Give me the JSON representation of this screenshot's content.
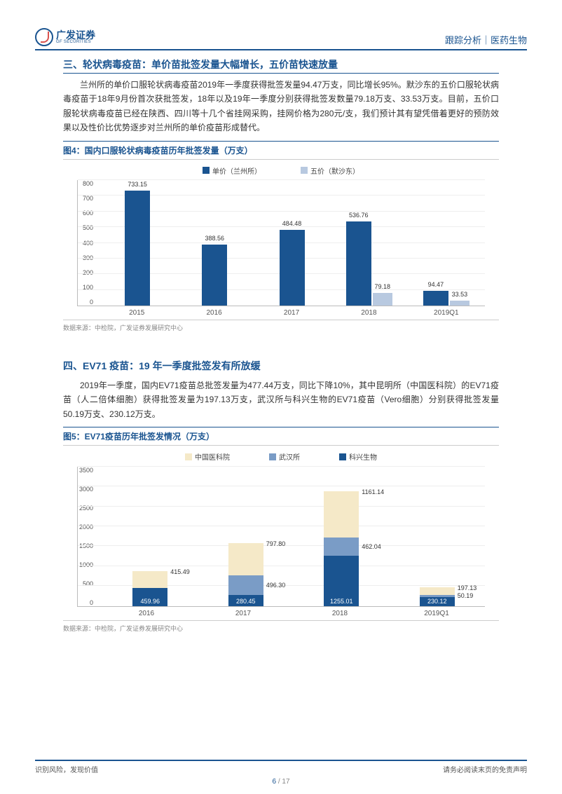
{
  "header": {
    "logo_cn": "广发证券",
    "logo_en": "GF SECURITIES",
    "right": "跟踪分析｜医药生物"
  },
  "section3": {
    "title": "三、轮状病毒疫苗：单价苗批签发量大幅增长，五价苗快速放量",
    "body": "兰州所的单价口服轮状病毒疫苗2019年一季度获得批签发量94.47万支，同比增长95%。默沙东的五价口服轮状病毒疫苗于18年9月份首次获批签发，18年以及19年一季度分别获得批签发数量79.18万支、33.53万支。目前，五价口服轮状病毒疫苗已经在陕西、四川等十几个省挂网采购，挂网价格为280元/支，我们预计其有望凭借着更好的预防效果以及性价比优势逐步对兰州所的单价疫苗形成替代。"
  },
  "chart4": {
    "title": "图4：国内口服轮状病毒疫苗历年批签发量（万支）",
    "type": "bar",
    "legend": [
      {
        "label": "单价（兰州所）",
        "color": "#1a5490"
      },
      {
        "label": "五价（默沙东）",
        "color": "#b8c9e0"
      }
    ],
    "categories": [
      "2015",
      "2016",
      "2017",
      "2018",
      "2019Q1"
    ],
    "series1": [
      733.15,
      388.56,
      484.48,
      536.76,
      94.47
    ],
    "series2": [
      null,
      null,
      null,
      79.18,
      33.53
    ],
    "y_max": 800,
    "y_step": 100,
    "bar_color1": "#1a5490",
    "bar_color2": "#b8c9e0",
    "source": "数据来源：中检院，广发证券发展研究中心"
  },
  "section4": {
    "title": "四、EV71 疫苗：19 年一季度批签发有所放缓",
    "body": "2019年一季度，国内EV71疫苗总批签发量为477.44万支，同比下降10%，其中昆明所（中国医科院）的EV71疫苗（人二倍体细胞）获得批签发量为197.13万支，武汉所与科兴生物的EV71疫苗（Vero细胞）分别获得批签发量50.19万支、230.12万支。"
  },
  "chart5": {
    "title": "图5：EV71疫苗历年批签发情况（万支）",
    "type": "stacked-bar",
    "legend": [
      {
        "label": "中国医科院",
        "color": "#f5e9c8"
      },
      {
        "label": "武汉所",
        "color": "#7a9cc6"
      },
      {
        "label": "科兴生物",
        "color": "#1a5490"
      }
    ],
    "categories": [
      "2016",
      "2017",
      "2018",
      "2019Q1"
    ],
    "series_kexing": [
      459.96,
      280.45,
      1255.01,
      230.12
    ],
    "series_wuhan": [
      0,
      496.3,
      462.04,
      50.19
    ],
    "series_zhongguo": [
      415.49,
      797.8,
      1161.14,
      197.13
    ],
    "y_max": 3500,
    "y_step": 500,
    "color_kexing": "#1a5490",
    "color_wuhan": "#7a9cc6",
    "color_zhongguo": "#f5e9c8",
    "source": "数据来源：中检院，广发证券发展研究中心"
  },
  "footer": {
    "left": "识别风险，发现价值",
    "right": "请务必阅读末页的免责声明",
    "page_current": "6",
    "page_sep": " / ",
    "page_total": "17"
  }
}
